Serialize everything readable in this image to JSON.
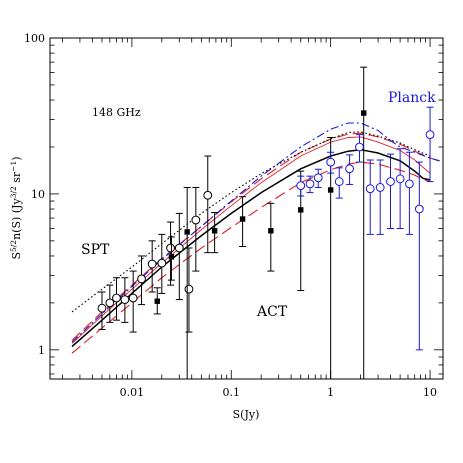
{
  "chart_data": {
    "type": "scatter",
    "title": "",
    "xlabel": "S(Jy)",
    "ylabel": "S^{5/2}n(S) (Jy^{3/2} sr^{-1})",
    "xscale": "log",
    "yscale": "log",
    "xlim": [
      0.0015,
      13.5
    ],
    "ylim": [
      0.65,
      100
    ],
    "x_ticks": [
      {
        "value": 0.01,
        "label": "0.01"
      },
      {
        "value": 0.1,
        "label": "0.1"
      },
      {
        "value": 1,
        "label": "1"
      },
      {
        "value": 10,
        "label": "10"
      }
    ],
    "y_ticks": [
      {
        "value": 1,
        "label": "1"
      },
      {
        "value": 10,
        "label": "10"
      },
      {
        "value": 100,
        "label": "100"
      }
    ],
    "annotations": {
      "frequency": "148 GHz",
      "spt": "SPT",
      "act": "ACT",
      "planck": "Planck"
    },
    "colors": {
      "axis": "#000000",
      "planck": "#1a1ad9",
      "red": "#e0202a",
      "black": "#000000"
    },
    "series": [
      {
        "name": "SPT",
        "kind": "points",
        "marker": "open-circle",
        "color": "#000000",
        "points": [
          {
            "x": 0.005,
            "y": 1.85,
            "lo": 1.35,
            "hi": 2.35
          },
          {
            "x": 0.006,
            "y": 2.0,
            "lo": 1.5,
            "hi": 2.6
          },
          {
            "x": 0.007,
            "y": 2.15,
            "lo": 1.55,
            "hi": 2.9
          },
          {
            "x": 0.0085,
            "y": 2.1,
            "lo": 1.5,
            "hi": 2.9
          },
          {
            "x": 0.0103,
            "y": 2.15,
            "lo": 1.3,
            "hi": 3.2
          },
          {
            "x": 0.0125,
            "y": 2.85,
            "lo": 1.95,
            "hi": 4.0
          },
          {
            "x": 0.016,
            "y": 3.55,
            "lo": 2.35,
            "hi": 5.0
          },
          {
            "x": 0.02,
            "y": 3.6,
            "lo": 2.3,
            "hi": 5.5
          },
          {
            "x": 0.0245,
            "y": 4.5,
            "lo": 2.6,
            "hi": 6.6
          },
          {
            "x": 0.03,
            "y": 4.5,
            "lo": 2.1,
            "hi": 7.5
          },
          {
            "x": 0.0375,
            "y": 2.45,
            "lo": 1.3,
            "hi": 4.5
          },
          {
            "x": 0.044,
            "y": 6.8,
            "lo": 3.2,
            "hi": 11.0
          },
          {
            "x": 0.058,
            "y": 9.8,
            "lo": 4.2,
            "hi": 17.5
          }
        ]
      },
      {
        "name": "ACT",
        "kind": "points",
        "marker": "filled-square",
        "color": "#000000",
        "points": [
          {
            "x": 0.018,
            "y": 2.05,
            "lo": 1.7,
            "hi": 2.5
          },
          {
            "x": 0.025,
            "y": 3.95,
            "lo": 2.8,
            "hi": 5.3
          },
          {
            "x": 0.036,
            "y": 5.7,
            "lo": 0.6,
            "hi": 11.0
          },
          {
            "x": 0.068,
            "y": 5.8,
            "lo": 4.2,
            "hi": 7.6
          },
          {
            "x": 0.13,
            "y": 6.9,
            "lo": 4.6,
            "hi": 9.6
          },
          {
            "x": 0.25,
            "y": 5.8,
            "lo": 3.2,
            "hi": 8.7
          },
          {
            "x": 0.5,
            "y": 7.9,
            "lo": 2.4,
            "hi": 14.0
          },
          {
            "x": 1.0,
            "y": 10.6,
            "lo": 0.6,
            "hi": 23.0
          },
          {
            "x": 2.15,
            "y": 33.0,
            "lo": 0.6,
            "hi": 65.0
          }
        ]
      },
      {
        "name": "Planck",
        "kind": "points",
        "marker": "open-circle",
        "color": "#1a1ad9",
        "points": [
          {
            "x": 0.5,
            "y": 11.3,
            "lo": 9.7,
            "hi": 13.0
          },
          {
            "x": 0.62,
            "y": 11.6,
            "lo": 10.2,
            "hi": 13.0
          },
          {
            "x": 0.75,
            "y": 12.7,
            "lo": 11.0,
            "hi": 14.4
          },
          {
            "x": 1.0,
            "y": 16.0,
            "lo": 13.6,
            "hi": 18.5
          },
          {
            "x": 1.22,
            "y": 12.0,
            "lo": 9.4,
            "hi": 14.7
          },
          {
            "x": 1.55,
            "y": 14.5,
            "lo": 11.5,
            "hi": 17.8
          },
          {
            "x": 1.95,
            "y": 20.0,
            "lo": 16.0,
            "hi": 24.0
          },
          {
            "x": 2.5,
            "y": 10.8,
            "lo": 5.5,
            "hi": 16.5
          },
          {
            "x": 3.15,
            "y": 11.0,
            "lo": 5.5,
            "hi": 16.5
          },
          {
            "x": 4.0,
            "y": 12.0,
            "lo": 6.0,
            "hi": 18.0
          },
          {
            "x": 5.0,
            "y": 12.5,
            "lo": 6.0,
            "hi": 19.5
          },
          {
            "x": 6.2,
            "y": 11.6,
            "lo": 5.5,
            "hi": 18.5
          },
          {
            "x": 7.8,
            "y": 8.0,
            "lo": 1.0,
            "hi": 16.0
          },
          {
            "x": 10.0,
            "y": 24.0,
            "lo": 12.0,
            "hi": 36.0
          }
        ]
      },
      {
        "kind": "line",
        "style": "solid",
        "color": "#000000",
        "width": 1.5,
        "points": [
          [
            0.0025,
            1.05
          ],
          [
            0.005,
            1.55
          ],
          [
            0.01,
            2.3
          ],
          [
            0.02,
            3.4
          ],
          [
            0.05,
            5.4
          ],
          [
            0.1,
            7.5
          ],
          [
            0.2,
            10.2
          ],
          [
            0.5,
            14.5
          ],
          [
            1.0,
            17.5
          ],
          [
            1.5,
            18.8
          ],
          [
            2.0,
            19.2
          ],
          [
            3.0,
            18.3
          ],
          [
            5.0,
            16.3
          ],
          [
            7.0,
            14.0
          ],
          [
            8.5,
            12.6
          ],
          [
            10.0,
            12.3
          ]
        ]
      },
      {
        "kind": "line",
        "style": "long-dash",
        "color": "#e0202a",
        "width": 1.1,
        "points": [
          [
            0.0025,
            0.95
          ],
          [
            0.005,
            1.38
          ],
          [
            0.01,
            2.0
          ],
          [
            0.02,
            2.9
          ],
          [
            0.05,
            4.5
          ],
          [
            0.1,
            6.1
          ],
          [
            0.2,
            8.2
          ],
          [
            0.5,
            11.8
          ],
          [
            1.0,
            14.3
          ],
          [
            1.5,
            15.5
          ],
          [
            2.0,
            16.0
          ],
          [
            3.0,
            15.5
          ],
          [
            5.0,
            14.2
          ],
          [
            7.0,
            13.2
          ],
          [
            8.5,
            12.4
          ],
          [
            10.0,
            12.0
          ]
        ]
      },
      {
        "kind": "line",
        "style": "long-dash",
        "color": "#e0202a",
        "width": 1.1,
        "points": [
          [
            0.0025,
            1.15
          ],
          [
            0.005,
            1.75
          ],
          [
            0.01,
            2.6
          ],
          [
            0.02,
            3.85
          ],
          [
            0.05,
            6.2
          ],
          [
            0.1,
            8.9
          ],
          [
            0.2,
            12.5
          ],
          [
            0.5,
            18.5
          ],
          [
            1.0,
            22.5
          ],
          [
            1.5,
            24.2
          ],
          [
            2.0,
            24.5
          ],
          [
            3.0,
            23.2
          ],
          [
            5.0,
            20.8
          ],
          [
            7.0,
            18.8
          ],
          [
            10.0,
            17.0
          ],
          [
            12.5,
            16.2
          ]
        ]
      },
      {
        "kind": "line",
        "style": "dash-dot",
        "color": "#1a1ad9",
        "width": 1.1,
        "points": [
          [
            0.0025,
            1.12
          ],
          [
            0.005,
            1.7
          ],
          [
            0.01,
            2.55
          ],
          [
            0.02,
            3.8
          ],
          [
            0.05,
            6.2
          ],
          [
            0.1,
            9.0
          ],
          [
            0.2,
            13.0
          ],
          [
            0.5,
            20.0
          ],
          [
            1.0,
            26.0
          ],
          [
            1.5,
            28.5
          ],
          [
            2.0,
            28.5
          ],
          [
            3.0,
            25.5
          ],
          [
            4.0,
            22.0
          ],
          [
            5.0,
            20.0
          ],
          [
            7.0,
            18.5
          ],
          [
            10.0,
            17.0
          ],
          [
            12.5,
            16.3
          ]
        ]
      },
      {
        "kind": "line",
        "style": "dotted",
        "color": "#000000",
        "width": 1.1,
        "points": [
          [
            0.0025,
            1.75
          ],
          [
            0.005,
            2.45
          ],
          [
            0.01,
            3.4
          ],
          [
            0.02,
            4.8
          ],
          [
            0.05,
            7.5
          ],
          [
            0.1,
            10.2
          ],
          [
            0.2,
            13.5
          ],
          [
            0.5,
            18.5
          ],
          [
            1.0,
            22.5
          ],
          [
            1.5,
            24.8
          ],
          [
            2.0,
            25.0
          ],
          [
            3.0,
            23.5
          ],
          [
            5.0,
            21.2
          ],
          [
            7.0,
            19.2
          ],
          [
            10.0,
            17.5
          ]
        ]
      },
      {
        "kind": "line",
        "style": "solid",
        "color": "#e0202a",
        "width": 0.9,
        "points": [
          [
            0.0025,
            1.1
          ],
          [
            0.005,
            1.65
          ],
          [
            0.01,
            2.45
          ],
          [
            0.02,
            3.6
          ],
          [
            0.05,
            5.9
          ],
          [
            0.1,
            8.4
          ],
          [
            0.2,
            11.8
          ],
          [
            0.5,
            17.5
          ],
          [
            1.0,
            21.5
          ],
          [
            1.5,
            23.0
          ],
          [
            2.0,
            23.2
          ],
          [
            3.0,
            21.5
          ],
          [
            5.0,
            19.0
          ],
          [
            7.0,
            16.5
          ],
          [
            8.5,
            14.8
          ],
          [
            10.0,
            13.6
          ]
        ]
      }
    ]
  }
}
